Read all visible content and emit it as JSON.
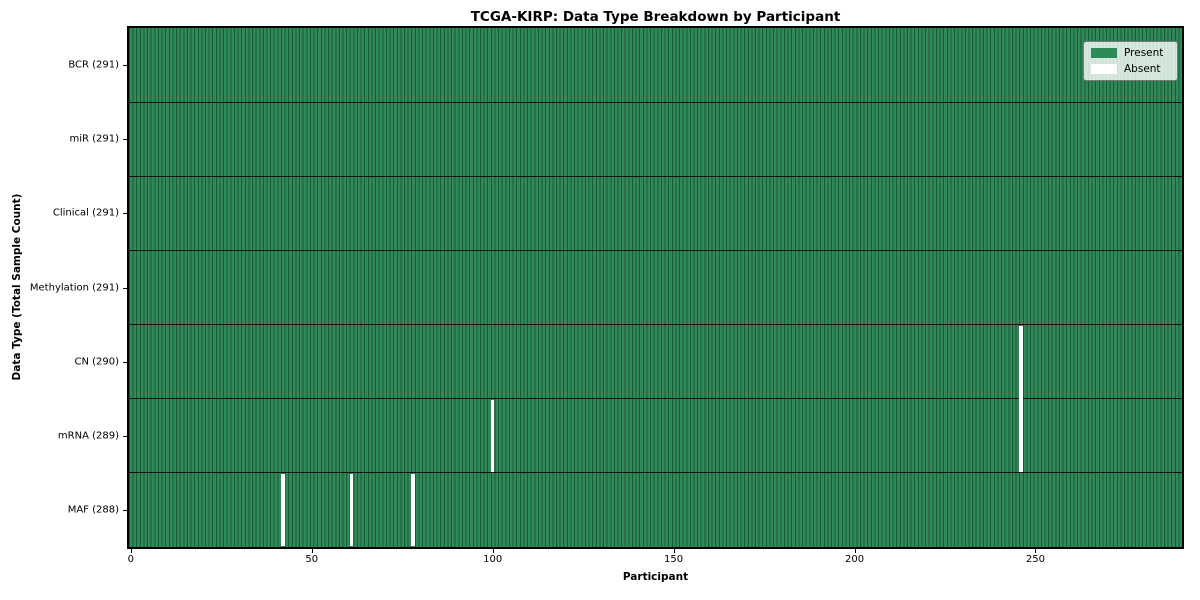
{
  "figure": {
    "title": "TCGA-KIRP: Data Type Breakdown by Participant",
    "xlabel": "Participant",
    "ylabel": "Data Type (Total Sample Count)"
  },
  "legend": {
    "items": [
      {
        "label": "Present",
        "color": "#2e8b57"
      },
      {
        "label": "Absent",
        "color": "#ffffff"
      }
    ]
  },
  "chart_data": {
    "type": "heatmap",
    "title": "TCGA-KIRP: Data Type Breakdown by Participant",
    "xlabel": "Participant",
    "ylabel": "Data Type (Total Sample Count)",
    "n_participants": 291,
    "x_range": [
      -0.5,
      290.5
    ],
    "xticks": [
      0,
      50,
      100,
      150,
      200,
      250
    ],
    "rows": [
      {
        "label": "BCR (291)",
        "data_type": "BCR",
        "present_count": 291,
        "absent_participants": []
      },
      {
        "label": "miR (291)",
        "data_type": "miR",
        "present_count": 291,
        "absent_participants": []
      },
      {
        "label": "Clinical (291)",
        "data_type": "Clinical",
        "present_count": 291,
        "absent_participants": []
      },
      {
        "label": "Methylation (291)",
        "data_type": "Methylation",
        "present_count": 291,
        "absent_participants": []
      },
      {
        "label": "CN (290)",
        "data_type": "CN",
        "present_count": 290,
        "absent_participants": [
          246
        ]
      },
      {
        "label": "mRNA (289)",
        "data_type": "mRNA",
        "present_count": 289,
        "absent_participants": [
          100,
          246
        ]
      },
      {
        "label": "MAF (288)",
        "data_type": "MAF",
        "present_count": 288,
        "absent_participants": [
          42,
          61,
          78
        ]
      }
    ],
    "colors": {
      "present": "#2e8b57",
      "absent": "#ffffff",
      "cell_edge": "#1d5738",
      "row_divider": "#101010",
      "spine": "#000000"
    },
    "legend": {
      "position": "upper right",
      "labels": [
        "Present",
        "Absent"
      ]
    },
    "grid": false
  }
}
